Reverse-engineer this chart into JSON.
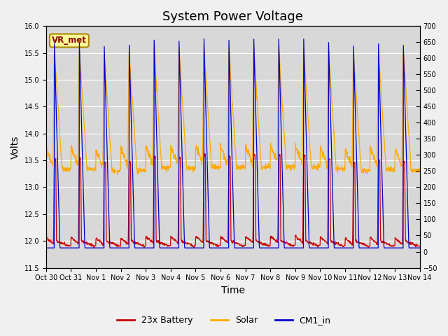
{
  "title": "System Power Voltage",
  "xlabel": "Time",
  "ylabel": "Volts",
  "ylim_left": [
    11.5,
    16.0
  ],
  "ylim_right": [
    -50,
    700
  ],
  "yticks_left": [
    11.5,
    12.0,
    12.5,
    13.0,
    13.5,
    14.0,
    14.5,
    15.0,
    15.5,
    16.0
  ],
  "yticks_right": [
    -50,
    0,
    50,
    100,
    150,
    200,
    250,
    300,
    350,
    400,
    450,
    500,
    550,
    600,
    650,
    700
  ],
  "x_ticks": [
    0,
    1,
    2,
    3,
    4,
    5,
    6,
    7,
    8,
    9,
    10,
    11,
    12,
    13,
    14,
    15
  ],
  "x_labels": [
    "Oct 30",
    "Oct 31",
    "Nov 1",
    "Nov 2",
    "Nov 3",
    "Nov 4",
    "Nov 5",
    "Nov 6",
    "Nov 7",
    "Nov 8",
    "Nov 9",
    "Nov 10",
    "Nov 11",
    "Nov 12",
    "Nov 13",
    "Nov 14"
  ],
  "legend_entries": [
    "23x Battery",
    "Solar",
    "CM1_in"
  ],
  "legend_colors": [
    "#cc0000",
    "#ffaa00",
    "#0000cc"
  ],
  "fig_bg": "#f0f0f0",
  "plot_bg": "#d8d8d8",
  "grid_color": "#ffffff",
  "vr_met_text": "VR_met",
  "vr_met_fc": "#ffff99",
  "vr_met_ec": "#aa8800",
  "vr_met_tc": "#880000",
  "title_fontsize": 13,
  "label_fontsize": 10,
  "tick_fontsize": 7,
  "legend_fontsize": 9
}
